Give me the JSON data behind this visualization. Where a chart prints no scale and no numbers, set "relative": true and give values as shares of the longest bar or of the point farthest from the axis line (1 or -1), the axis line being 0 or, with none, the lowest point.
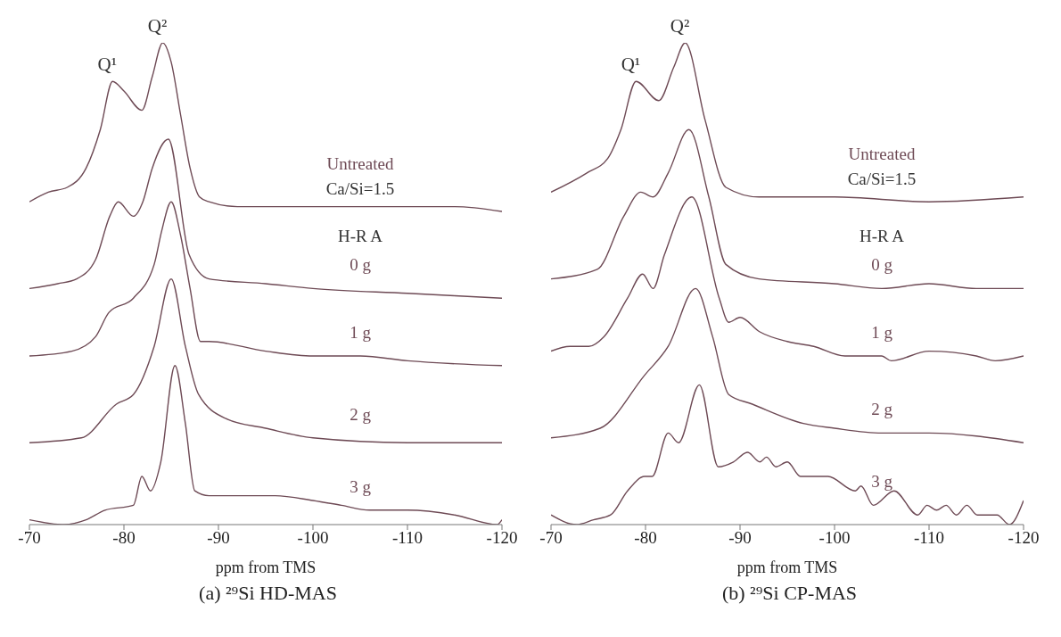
{
  "chart_data": [
    {
      "type": "line",
      "title": "(a) ²⁹Si HD-MAS",
      "xlabel": "ppm from TMS",
      "relative": true,
      "xlim": [
        -70,
        -120
      ],
      "xticks": [
        -70,
        -80,
        -90,
        -100,
        -110,
        -120
      ],
      "legend_title": "H-R A",
      "annotations": [
        "Ca/Si=1.5",
        {
          "text": "Q¹",
          "x": -78.8,
          "y": 0.92
        },
        {
          "text": "Q²",
          "x": -84.1,
          "y": 1.0
        }
      ],
      "series": [
        {
          "name": "Untreated",
          "color": "#6e4a55",
          "x": [
            -70,
            -72,
            -74,
            -76,
            -77.5,
            -78.8,
            -80,
            -81.9,
            -83,
            -84.1,
            -85,
            -86,
            -87,
            -88,
            -89,
            -92,
            -95,
            -100,
            -105,
            -110,
            -115,
            -120
          ],
          "values": [
            0.67,
            0.69,
            0.7,
            0.74,
            0.82,
            0.92,
            0.9,
            0.86,
            0.93,
            1.0,
            0.96,
            0.85,
            0.74,
            0.68,
            0.67,
            0.66,
            0.66,
            0.66,
            0.66,
            0.66,
            0.66,
            0.65
          ]
        },
        {
          "name": "0 g",
          "color": "#6e4a55",
          "x": [
            -70,
            -73,
            -75,
            -77,
            -78.5,
            -79.4,
            -81,
            -82,
            -83,
            -84.7,
            -86.9,
            -89,
            -95,
            -100,
            -110,
            -120
          ],
          "values": [
            0.49,
            0.5,
            0.51,
            0.55,
            0.64,
            0.67,
            0.64,
            0.67,
            0.74,
            0.8,
            0.56,
            0.51,
            0.5,
            0.49,
            0.48,
            0.47
          ]
        },
        {
          "name": "1 g",
          "color": "#6e4a55",
          "x": [
            -70,
            -74.5,
            -77,
            -78.4,
            -81,
            -83.2,
            -84,
            -85,
            -86,
            -87,
            -88.1,
            -89,
            -95,
            -100,
            -105,
            -110,
            -120
          ],
          "values": [
            0.35,
            0.36,
            0.39,
            0.44,
            0.47,
            0.54,
            0.61,
            0.67,
            0.6,
            0.49,
            0.38,
            0.38,
            0.36,
            0.35,
            0.35,
            0.34,
            0.33
          ]
        },
        {
          "name": "2 g",
          "color": "#6e4a55",
          "x": [
            -70,
            -75.5,
            -79.2,
            -81,
            -83.2,
            -85,
            -86.5,
            -87.9,
            -90.8,
            -95,
            -100,
            -110,
            -115,
            -120
          ],
          "values": [
            0.17,
            0.18,
            0.25,
            0.27,
            0.37,
            0.51,
            0.37,
            0.27,
            0.22,
            0.2,
            0.18,
            0.17,
            0.17,
            0.17
          ]
        },
        {
          "name": "3 g",
          "color": "#6e4a55",
          "x": [
            -70,
            -73.7,
            -76,
            -78,
            -81,
            -81.9,
            -82.8,
            -83.9,
            -85.4,
            -86.5,
            -87.5,
            -89,
            -92.7,
            -96,
            -100,
            -103,
            -106,
            -110,
            -115,
            -119.5,
            -120
          ],
          "values": [
            0.01,
            0,
            0.01,
            0.03,
            0.04,
            0.1,
            0.07,
            0.13,
            0.33,
            0.21,
            0.07,
            0.06,
            0.06,
            0.06,
            0.05,
            0.04,
            0.03,
            0.03,
            0.02,
            0,
            0.01
          ]
        }
      ]
    },
    {
      "type": "line",
      "title": "(b) ²⁹Si CP-MAS",
      "xlabel": "ppm from TMS",
      "relative": true,
      "xlim": [
        -70,
        -120
      ],
      "xticks": [
        -70,
        -80,
        -90,
        -100,
        -110,
        -120
      ],
      "legend_title": "H-R A",
      "annotations": [
        "Ca/Si=1.5",
        {
          "text": "Q¹",
          "x": -79,
          "y": 0.92
        },
        {
          "text": "Q²",
          "x": -84.2,
          "y": 1.0
        }
      ],
      "series": [
        {
          "name": "Untreated",
          "color": "#6e4a55",
          "x": [
            -70,
            -73.8,
            -76,
            -77.4,
            -79,
            -81.4,
            -83,
            -84.2,
            -86.3,
            -88.5,
            -92,
            -100,
            -110,
            -120
          ],
          "values": [
            0.69,
            0.73,
            0.76,
            0.82,
            0.92,
            0.88,
            0.95,
            1.0,
            0.84,
            0.7,
            0.68,
            0.68,
            0.67,
            0.68
          ]
        },
        {
          "name": "0 g",
          "color": "#6e4a55",
          "x": [
            -70,
            -74.9,
            -77.7,
            -79.5,
            -80.8,
            -82.4,
            -84.6,
            -86.7,
            -88.5,
            -92,
            -100,
            -105,
            -110,
            -115,
            -120
          ],
          "values": [
            0.51,
            0.53,
            0.64,
            0.69,
            0.68,
            0.73,
            0.82,
            0.68,
            0.54,
            0.51,
            0.5,
            0.49,
            0.5,
            0.49,
            0.49
          ]
        },
        {
          "name": "1 g",
          "color": "#6e4a55",
          "x": [
            -70,
            -72,
            -74,
            -75.6,
            -78.1,
            -79.7,
            -80.8,
            -82,
            -84.9,
            -87.8,
            -88.8,
            -90,
            -92.1,
            -95,
            -97.8,
            -101.1,
            -105,
            -106,
            -110,
            -115,
            -117,
            -120
          ],
          "values": [
            0.36,
            0.37,
            0.37,
            0.39,
            0.47,
            0.52,
            0.49,
            0.56,
            0.68,
            0.47,
            0.42,
            0.43,
            0.4,
            0.38,
            0.37,
            0.35,
            0.35,
            0.34,
            0.36,
            0.35,
            0.34,
            0.35
          ]
        },
        {
          "name": "2 g",
          "color": "#6e4a55",
          "x": [
            -70,
            -75.2,
            -79.9,
            -82.4,
            -85.3,
            -87.1,
            -88.8,
            -91.3,
            -96.7,
            -100,
            -105,
            -110,
            -120
          ],
          "values": [
            0.18,
            0.2,
            0.31,
            0.37,
            0.49,
            0.39,
            0.27,
            0.25,
            0.21,
            0.2,
            0.19,
            0.19,
            0.17
          ]
        },
        {
          "name": "3 g",
          "color": "#6e4a55",
          "x": [
            -70,
            -72.7,
            -74.5,
            -76.3,
            -78.1,
            -79.9,
            -80.7,
            -82.4,
            -83.5,
            -85.7,
            -87.7,
            -89.3,
            -90.8,
            -92.1,
            -92.8,
            -93.8,
            -95,
            -96.4,
            -99.3,
            -102.2,
            -102.8,
            -104.1,
            -106.3,
            -108.8,
            -109.8,
            -110.8,
            -111.8,
            -112.9,
            -114,
            -115.1,
            -117.2,
            -118.5,
            -120
          ],
          "values": [
            0.02,
            0,
            0.01,
            0.02,
            0.07,
            0.1,
            0.1,
            0.19,
            0.17,
            0.29,
            0.12,
            0.13,
            0.15,
            0.13,
            0.14,
            0.12,
            0.13,
            0.1,
            0.1,
            0.07,
            0.08,
            0.04,
            0.07,
            0.02,
            0.04,
            0.03,
            0.04,
            0.02,
            0.04,
            0.02,
            0.02,
            0,
            0.05
          ]
        }
      ]
    }
  ]
}
